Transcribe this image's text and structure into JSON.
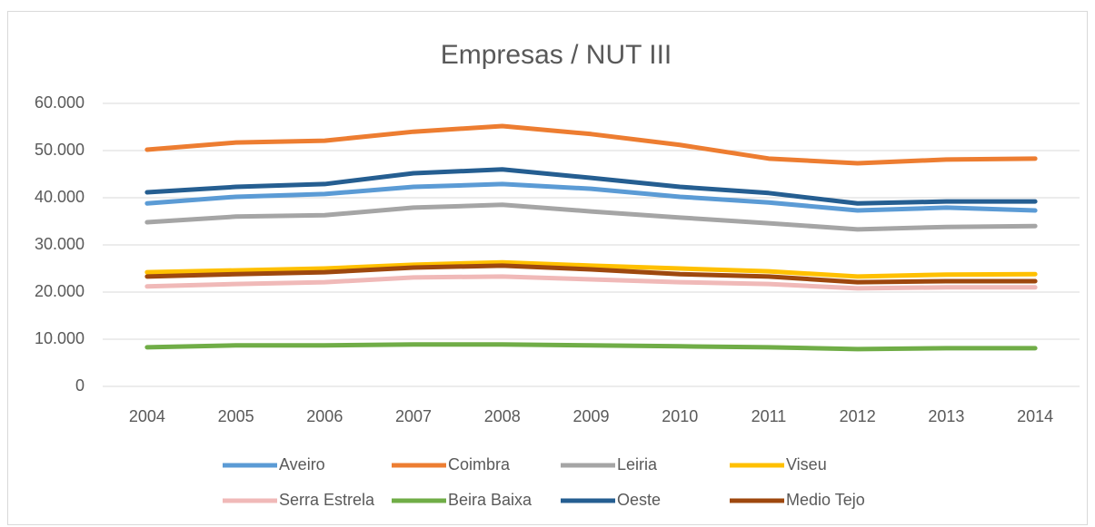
{
  "chart_data": {
    "type": "line",
    "title": "Empresas / NUT III",
    "categories": [
      "2004",
      "2005",
      "2006",
      "2007",
      "2008",
      "2009",
      "2010",
      "2011",
      "2012",
      "2013",
      "2014"
    ],
    "ylim": [
      0,
      60000
    ],
    "yticks": [
      0,
      {
        "value": 10000,
        "label": "10.000"
      },
      {
        "value": 20000,
        "label": "20.000"
      },
      {
        "value": 30000,
        "label": "30.000"
      },
      {
        "value": 40000,
        "label": "40.000"
      },
      {
        "value": 50000,
        "label": "50.000"
      },
      {
        "value": 60000,
        "label": "60.000"
      }
    ],
    "grid": true,
    "legend": "bottom",
    "series": [
      {
        "name": "Aveiro",
        "color": "#5b9bd5",
        "values": [
          38800,
          40200,
          40800,
          42300,
          42900,
          41900,
          40200,
          39000,
          37300,
          37900,
          37300
        ]
      },
      {
        "name": "Coimbra",
        "color": "#ed7d31",
        "values": [
          50200,
          51700,
          52100,
          54000,
          55200,
          53500,
          51200,
          48300,
          47300,
          48100,
          48300
        ]
      },
      {
        "name": "Leiria",
        "color": "#a5a5a5",
        "values": [
          34800,
          36000,
          36300,
          37900,
          38500,
          37100,
          35800,
          34600,
          33300,
          33800,
          34000
        ]
      },
      {
        "name": "Viseu",
        "color": "#ffc000",
        "values": [
          24200,
          24600,
          25000,
          25800,
          26300,
          25600,
          25000,
          24400,
          23300,
          23700,
          23800
        ]
      },
      {
        "name": "Serra Estrela",
        "color": "#f0b9b8",
        "values": [
          21200,
          21700,
          22100,
          23100,
          23300,
          22700,
          22100,
          21700,
          20800,
          21000,
          21000
        ]
      },
      {
        "name": "Beira Baixa",
        "color": "#70ad47",
        "values": [
          8300,
          8700,
          8700,
          8900,
          8900,
          8700,
          8500,
          8300,
          7900,
          8100,
          8100
        ]
      },
      {
        "name": "Oeste",
        "color": "#255e91",
        "values": [
          41150,
          42300,
          42900,
          45200,
          46000,
          44200,
          42300,
          41000,
          38800,
          39200,
          39200
        ]
      },
      {
        "name": "Medio Tejo",
        "color": "#9e480e",
        "values": [
          23300,
          23800,
          24200,
          25200,
          25600,
          24800,
          23800,
          23300,
          22100,
          22300,
          22300
        ]
      }
    ]
  }
}
